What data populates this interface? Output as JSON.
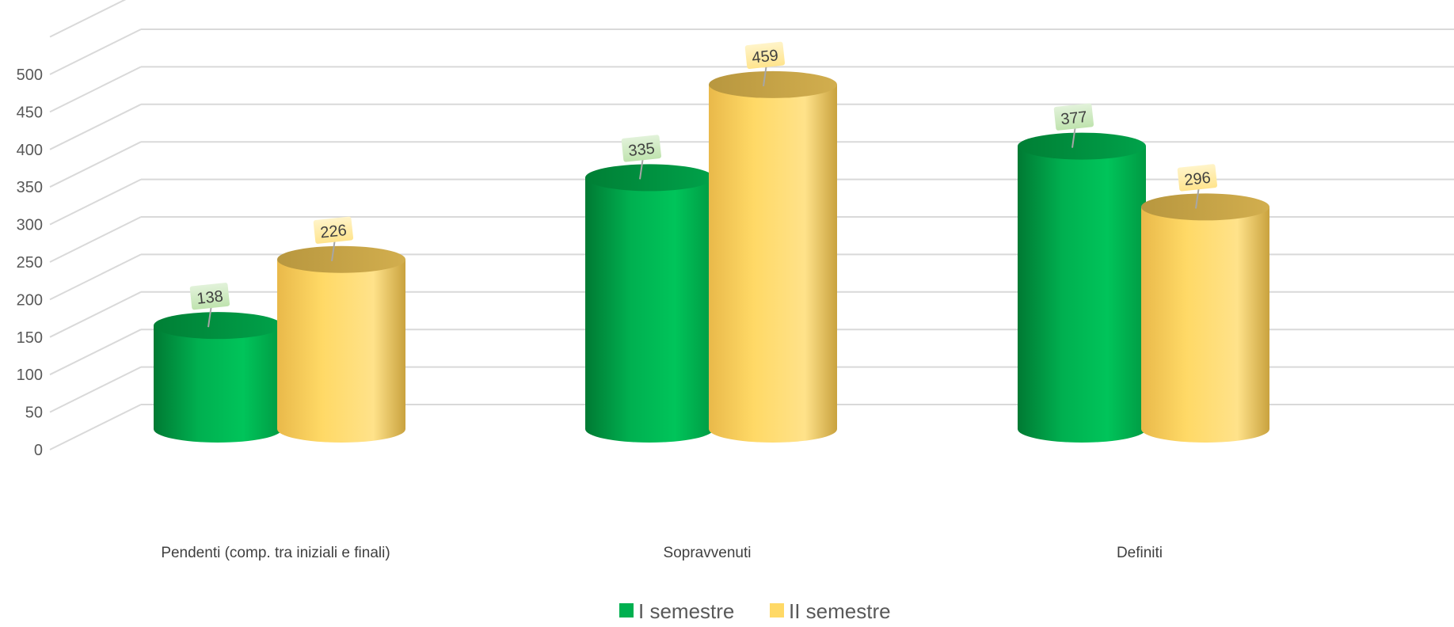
{
  "chart_data": {
    "type": "bar",
    "title": "",
    "xlabel": "",
    "ylabel": "",
    "categories": [
      "Pendenti (comp. tra iniziali e finali)",
      "Sopravvenuti",
      "Definiti"
    ],
    "series": [
      {
        "name": "I semestre",
        "values": [
          138,
          335,
          377
        ],
        "color": "#00B050"
      },
      {
        "name": "II semestre",
        "values": [
          226,
          459,
          296
        ],
        "color": "#FFD966"
      }
    ],
    "ylim": [
      0,
      500
    ],
    "yticks": [
      0,
      50,
      100,
      150,
      200,
      250,
      300,
      350,
      400,
      450,
      500
    ],
    "grid": true,
    "legend": "bottom",
    "style": "3d-cylinder",
    "data_labels": true
  }
}
